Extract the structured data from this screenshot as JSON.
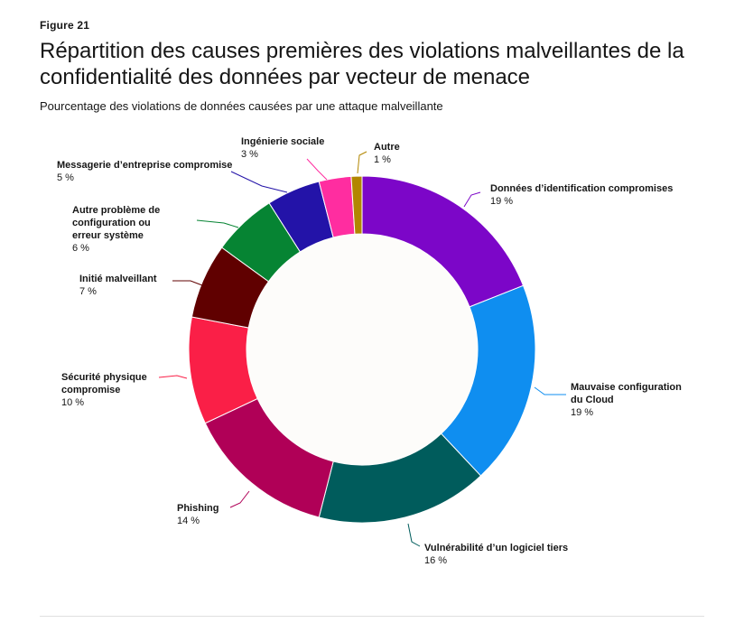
{
  "figure_label": "Figure 21",
  "title": "Répartition des causes premières des violations malveillantes de la confidentialité des données par vecteur de menace",
  "subtitle": "Pourcentage des violations de données causées par une attaque malveillante",
  "chart_data": {
    "type": "pie",
    "donut": true,
    "unit": "%",
    "slices": [
      {
        "name": "Données d’identification compromises",
        "value": 19,
        "label": "19 %",
        "color": "#7c06c8"
      },
      {
        "name": "Mauvaise configuration du Cloud",
        "value": 19,
        "label": "19 %",
        "color": "#0f8ef0"
      },
      {
        "name": "Vulnérabilité d’un logiciel tiers",
        "value": 16,
        "label": "16 %",
        "color": "#005c5c"
      },
      {
        "name": "Phishing",
        "value": 14,
        "label": "14 %",
        "color": "#b00057"
      },
      {
        "name": "Sécurité physique compromise",
        "value": 10,
        "label": "10 %",
        "color": "#fa1f47"
      },
      {
        "name": "Initié malveillant",
        "value": 7,
        "label": "7 %",
        "color": "#600000"
      },
      {
        "name": "Autre problème de configuration ou erreur système",
        "value": 6,
        "label": "6 %",
        "color": "#068433"
      },
      {
        "name": "Messagerie d’entreprise compromise",
        "value": 5,
        "label": "5 %",
        "color": "#2313a8"
      },
      {
        "name": "Ingénierie sociale",
        "value": 3,
        "label": "3 %",
        "color": "#ff2da0"
      },
      {
        "name": "Autre",
        "value": 1,
        "label": "1 %",
        "color": "#b28600"
      }
    ]
  }
}
